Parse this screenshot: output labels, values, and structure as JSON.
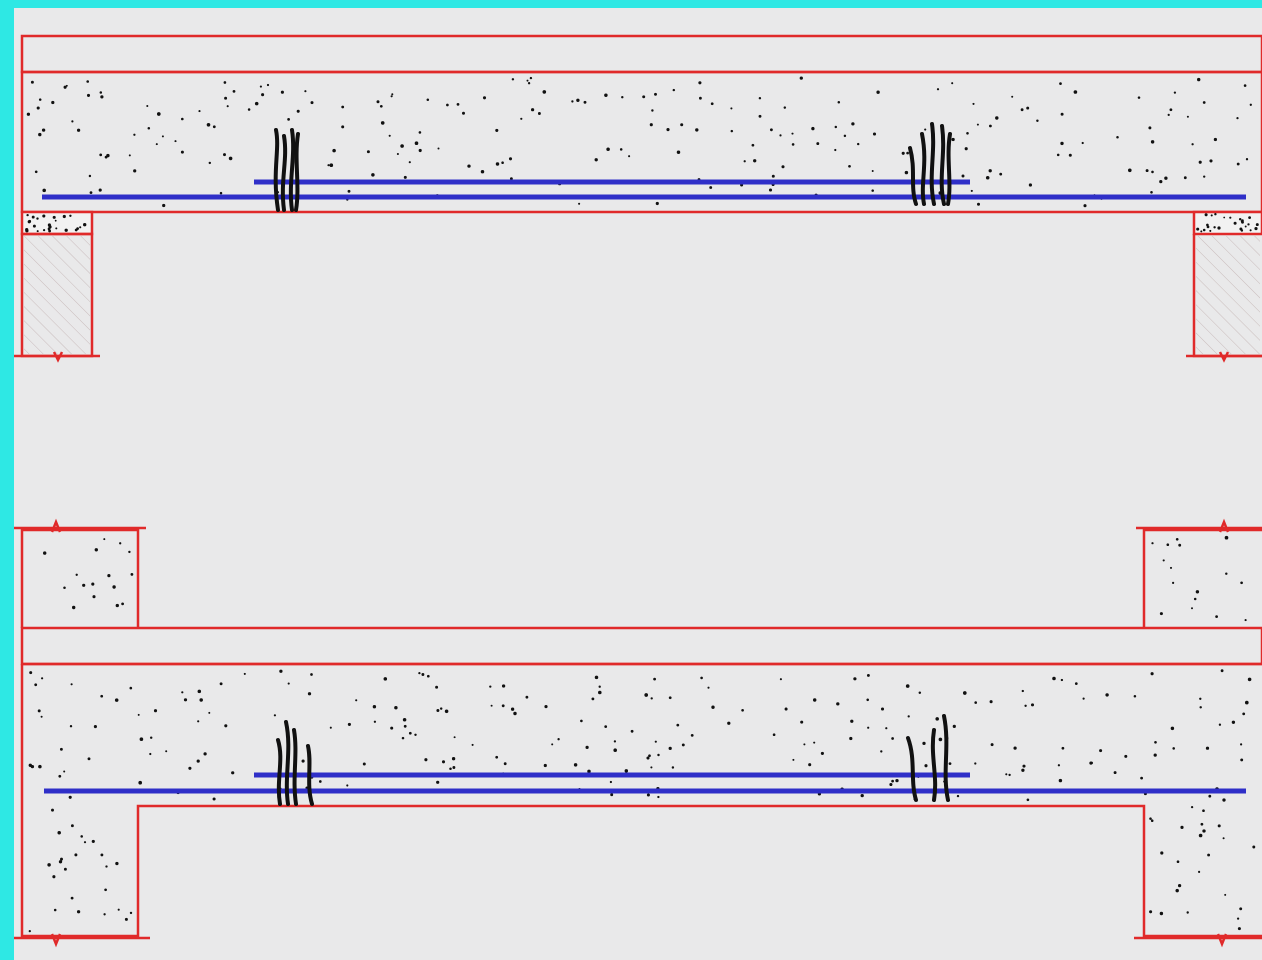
{
  "colors": {
    "frame": "#2ee8e4",
    "paper": "#e9e9ea",
    "outline": "#e02a2a",
    "rebar": "#2f2fc8",
    "crack": "#111111",
    "aggregate": "#111111",
    "hatch": "#c9bcbc"
  },
  "top_diagram": {
    "name": "slab-on-masonry-supports",
    "cracks": [
      "crack-icon",
      "crack-icon"
    ]
  },
  "bottom_diagram": {
    "name": "slab-monolithic-with-columns",
    "cracks": [
      "crack-icon",
      "crack-icon"
    ]
  }
}
